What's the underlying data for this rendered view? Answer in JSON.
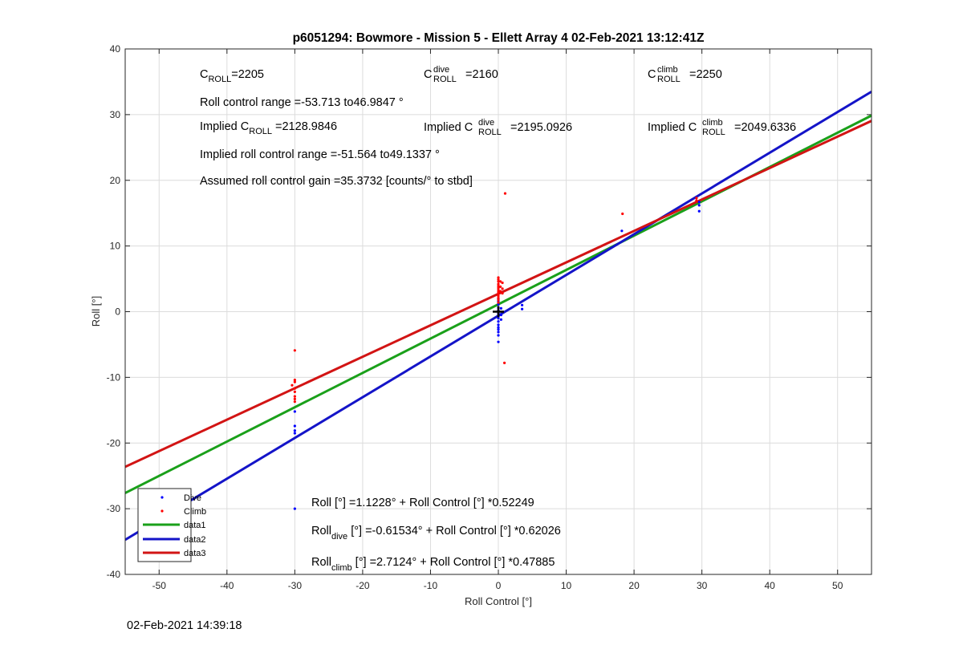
{
  "timestamp": "02-Feb-2021 14:39:18",
  "chart_data": {
    "type": "scatter",
    "title": "p6051294: Bowmore - Mission 5 - Ellett Array 4 02-Feb-2021 13:12:41Z",
    "xlabel": "Roll Control [°]",
    "ylabel": "Roll [°]",
    "xlim": [
      -55,
      55
    ],
    "ylim": [
      -40,
      40
    ],
    "xticks": [
      -50,
      -40,
      -30,
      -20,
      -10,
      0,
      10,
      20,
      30,
      40,
      50
    ],
    "yticks": [
      -40,
      -30,
      -20,
      -10,
      0,
      10,
      20,
      30,
      40
    ],
    "grid": true,
    "legend_position": "bottom-left",
    "colors": {
      "dive": "#0000ff",
      "climb": "#ff0000",
      "data1": "#1aa01a",
      "data2": "#1414c8",
      "data3": "#d21414"
    },
    "series": [
      {
        "name": "Dive",
        "kind": "points",
        "color": "#0000ff",
        "points": [
          [
            -30,
            -15.2
          ],
          [
            -30,
            -17.4
          ],
          [
            -30,
            -18.1
          ],
          [
            -30,
            -18.5
          ],
          [
            -30,
            -30
          ],
          [
            0,
            2
          ],
          [
            0,
            1.6
          ],
          [
            0,
            1.1
          ],
          [
            0,
            0.6
          ],
          [
            0,
            0.2
          ],
          [
            0,
            -0.3
          ],
          [
            0,
            -0.7
          ],
          [
            0,
            -1.0
          ],
          [
            0,
            -1.5
          ],
          [
            0,
            -2.0
          ],
          [
            0,
            -2.4
          ],
          [
            0,
            -2.7
          ],
          [
            0,
            -3.1
          ],
          [
            0,
            -3.6
          ],
          [
            0,
            -4.6
          ],
          [
            0.4,
            0.5
          ],
          [
            0.4,
            -0.5
          ],
          [
            0.4,
            -1.2
          ],
          [
            3.5,
            1.0
          ],
          [
            3.5,
            0.4
          ],
          [
            18.2,
            12.3
          ],
          [
            29.6,
            16.2
          ],
          [
            29.6,
            15.3
          ],
          [
            29.6,
            16.7
          ]
        ]
      },
      {
        "name": "Climb",
        "kind": "points",
        "color": "#ff0000",
        "points": [
          [
            -30,
            -5.9
          ],
          [
            -30,
            -10.4
          ],
          [
            -30,
            -10.7
          ],
          [
            -30,
            -11.7
          ],
          [
            -30,
            -12.2
          ],
          [
            -30,
            -12.9
          ],
          [
            -30,
            -13.3
          ],
          [
            -30,
            -13.7
          ],
          [
            -30.4,
            -11.2
          ],
          [
            0,
            5.2
          ],
          [
            0,
            4.9
          ],
          [
            0,
            4.6
          ],
          [
            0,
            4.2
          ],
          [
            0,
            3.9
          ],
          [
            0,
            3.6
          ],
          [
            0,
            3.3
          ],
          [
            0,
            3.0
          ],
          [
            0,
            2.7
          ],
          [
            0,
            2.4
          ],
          [
            0,
            2.1
          ],
          [
            0,
            1.8
          ],
          [
            0,
            1.4
          ],
          [
            0.3,
            4.6
          ],
          [
            0.3,
            3.8
          ],
          [
            0.3,
            3.1
          ],
          [
            0.6,
            4.4
          ],
          [
            0.6,
            3.5
          ],
          [
            0.6,
            2.8
          ],
          [
            1.0,
            18.0
          ],
          [
            0.9,
            -7.8
          ],
          [
            18.3,
            14.9
          ],
          [
            29.2,
            16.9
          ],
          [
            29.2,
            17.3
          ]
        ]
      },
      {
        "name": "data1",
        "kind": "line",
        "color": "#1aa01a",
        "intercept": 1.1228,
        "slope": 0.52249
      },
      {
        "name": "data2",
        "kind": "line",
        "color": "#1414c8",
        "intercept": -0.61534,
        "slope": 0.62026
      },
      {
        "name": "data3",
        "kind": "line",
        "color": "#d21414",
        "intercept": 2.7124,
        "slope": 0.47885
      }
    ],
    "legend": [
      "Dive",
      "Climb",
      "data1",
      "data2",
      "data3"
    ],
    "annotations": {
      "c_roll": {
        "base": "C",
        "sub": "ROLL",
        "rest": "=2205"
      },
      "c_roll_dive": {
        "base": "C",
        "sup": "dive",
        "sub": "ROLL",
        "rest": " =2160"
      },
      "c_roll_climb": {
        "base": "C",
        "sup": "climb",
        "sub": "ROLL",
        "rest": " =2250"
      },
      "roll_control_range": "Roll control range =-53.713 to46.9847 °",
      "implied_c_roll": {
        "prefix": "Implied C",
        "sub": "ROLL",
        "rest": " =2128.9846"
      },
      "implied_c_roll_dive": {
        "prefix": "Implied C",
        "sup": "dive",
        "sub": "ROLL",
        "rest": " =2195.0926"
      },
      "implied_c_roll_climb": {
        "prefix": "Implied C",
        "sup": "climb",
        "sub": "ROLL",
        "rest": " =2049.6336"
      },
      "implied_roll_range": "Implied roll control range =-51.564 to49.1337 °",
      "gain": "Assumed roll control gain =35.3732 [counts/° to stbd]",
      "fit_all": "Roll [°] =1.1228° + Roll Control [°] *0.52249",
      "fit_dive": {
        "base": "Roll",
        "sub": "dive",
        "rest": " [°] =-0.61534° + Roll Control [°] *0.62026"
      },
      "fit_climb": {
        "base": "Roll",
        "sub": "climb",
        "rest": " [°] =2.7124° + Roll Control [°] *0.47885"
      }
    },
    "markers": [
      {
        "shape": "plus",
        "x": 0,
        "y": 0,
        "color": "#000000"
      }
    ]
  }
}
